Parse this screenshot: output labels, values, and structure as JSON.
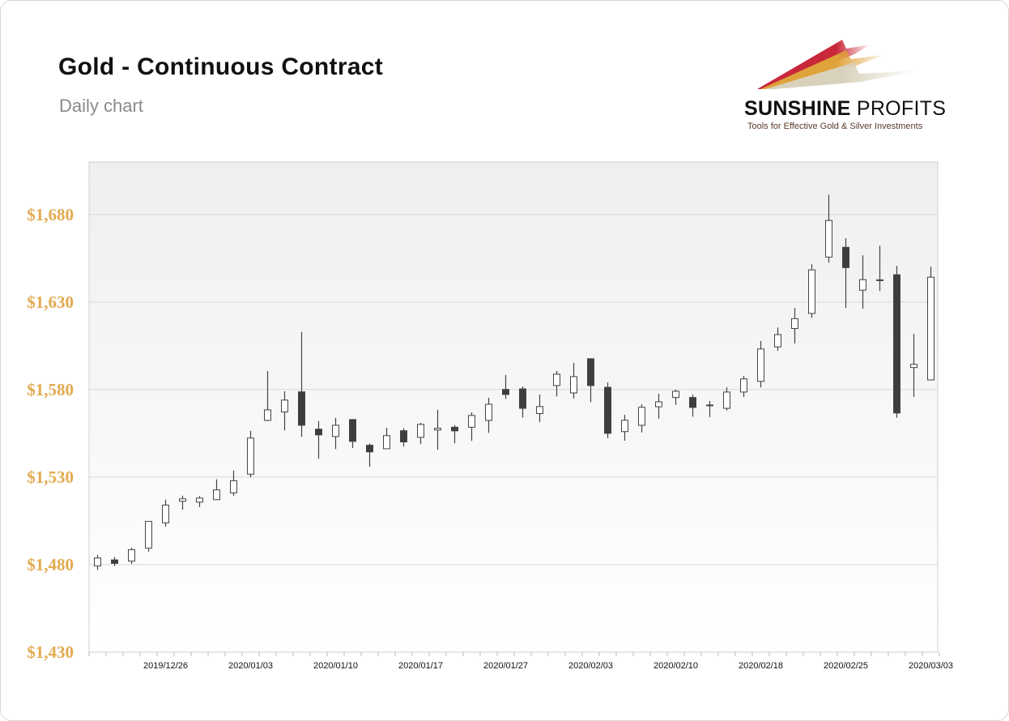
{
  "header": {
    "title": "Gold - Continuous Contract",
    "subtitle": "Daily chart"
  },
  "logo": {
    "name_bold": "SUNSHINE",
    "name_light": "PROFITS",
    "tagline": "Tools for Effective Gold & Silver Investments",
    "colors": [
      "#c8283a",
      "#e0a23a",
      "#d8d2bd"
    ]
  },
  "colors": {
    "up_fill": "#ffffff",
    "down_fill": "#3d3d3d",
    "wick": "#444444",
    "ytick": "#e3aa4f",
    "grid": "#d8d8d8"
  },
  "chart_data": {
    "type": "candlestick",
    "title": "Gold - Continuous Contract",
    "subtitle": "Daily chart",
    "xlabel": "",
    "ylabel": "",
    "ylim": [
      1430,
      1710
    ],
    "y_ticks": [
      1430,
      1480,
      1530,
      1580,
      1630,
      1680
    ],
    "y_tick_labels": [
      "$1,430",
      "$1,480",
      "$1,530",
      "$1,580",
      "$1,630",
      "$1,680"
    ],
    "grid": true,
    "x_tick_labels": [
      "2019/12/26",
      "2020/01/03",
      "2020/01/10",
      "2020/01/17",
      "2020/01/27",
      "2020/02/03",
      "2020/02/10",
      "2020/02/18",
      "2020/02/25",
      "2020/03/03"
    ],
    "dates": [
      "2019/12/19",
      "2019/12/20",
      "2019/12/23",
      "2019/12/24",
      "2019/12/26",
      "2019/12/27",
      "2019/12/30",
      "2019/12/31",
      "2020/01/02",
      "2020/01/03",
      "2020/01/06",
      "2020/01/07",
      "2020/01/08",
      "2020/01/09",
      "2020/01/10",
      "2020/01/13",
      "2020/01/14",
      "2020/01/15",
      "2020/01/16",
      "2020/01/17",
      "2020/01/21",
      "2020/01/22",
      "2020/01/23",
      "2020/01/24",
      "2020/01/27",
      "2020/01/28",
      "2020/01/29",
      "2020/01/30",
      "2020/01/31",
      "2020/02/03",
      "2020/02/04",
      "2020/02/05",
      "2020/02/06",
      "2020/02/07",
      "2020/02/10",
      "2020/02/11",
      "2020/02/12",
      "2020/02/13",
      "2020/02/14",
      "2020/02/18",
      "2020/02/19",
      "2020/02/20",
      "2020/02/21",
      "2020/02/24",
      "2020/02/25",
      "2020/02/26",
      "2020/02/27",
      "2020/02/28",
      "2020/03/02",
      "2020/03/03"
    ],
    "ohlc": [
      [
        1479.2,
        1485.5,
        1477.0,
        1483.8
      ],
      [
        1482.7,
        1484.3,
        1479.2,
        1480.7
      ],
      [
        1482.0,
        1489.7,
        1480.4,
        1488.5
      ],
      [
        1489.4,
        1504.7,
        1487.4,
        1504.7
      ],
      [
        1503.9,
        1517.1,
        1501.7,
        1514.0
      ],
      [
        1516.2,
        1519.4,
        1511.4,
        1517.6
      ],
      [
        1515.7,
        1519.2,
        1512.9,
        1518.0
      ],
      [
        1517.1,
        1528.7,
        1517.1,
        1522.7
      ],
      [
        1521.0,
        1533.7,
        1519.2,
        1527.9
      ],
      [
        1531.7,
        1556.4,
        1529.9,
        1552.3
      ],
      [
        1562.4,
        1590.6,
        1561.9,
        1568.4
      ],
      [
        1567.2,
        1579.0,
        1556.7,
        1574.0
      ],
      [
        1578.7,
        1612.9,
        1553.0,
        1559.6
      ],
      [
        1557.4,
        1562.0,
        1540.5,
        1554.1
      ],
      [
        1553.2,
        1563.8,
        1546.0,
        1559.6
      ],
      [
        1562.9,
        1562.9,
        1546.6,
        1550.4
      ],
      [
        1548.2,
        1549.2,
        1535.9,
        1544.4
      ],
      [
        1546.2,
        1558.2,
        1546.2,
        1553.7
      ],
      [
        1556.5,
        1557.9,
        1547.4,
        1550.1
      ],
      [
        1552.7,
        1561.0,
        1548.8,
        1560.1
      ],
      [
        1556.9,
        1568.4,
        1545.6,
        1557.9
      ],
      [
        1558.5,
        1559.6,
        1549.3,
        1556.4
      ],
      [
        1558.5,
        1567.0,
        1550.7,
        1565.2
      ],
      [
        1562.4,
        1575.3,
        1555.3,
        1571.6
      ],
      [
        1580.1,
        1588.3,
        1574.7,
        1577.2
      ],
      [
        1580.4,
        1581.8,
        1564.0,
        1569.3
      ],
      [
        1566.3,
        1577.2,
        1561.4,
        1570.3
      ],
      [
        1582.3,
        1590.6,
        1576.1,
        1588.8
      ],
      [
        1578.1,
        1595.2,
        1574.9,
        1587.4
      ],
      [
        1597.6,
        1598.0,
        1572.8,
        1582.3
      ],
      [
        1581.3,
        1584.1,
        1552.2,
        1555.0
      ],
      [
        1556.0,
        1565.6,
        1550.8,
        1562.5
      ],
      [
        1559.6,
        1571.6,
        1555.5,
        1569.9
      ],
      [
        1570.2,
        1577.6,
        1563.4,
        1573.0
      ],
      [
        1575.5,
        1580.0,
        1571.2,
        1579.0
      ],
      [
        1575.5,
        1577.2,
        1564.5,
        1569.8
      ],
      [
        1571.0,
        1573.5,
        1564.3,
        1571.2
      ],
      [
        1569.3,
        1581.3,
        1568.0,
        1578.6
      ],
      [
        1578.6,
        1587.8,
        1575.8,
        1586.1
      ],
      [
        1584.7,
        1607.8,
        1581.2,
        1603.2
      ],
      [
        1604.4,
        1615.5,
        1602.1,
        1611.4
      ],
      [
        1614.9,
        1626.6,
        1606.3,
        1620.5
      ],
      [
        1623.5,
        1651.6,
        1621.0,
        1648.4
      ],
      [
        1655.7,
        1691.3,
        1652.5,
        1676.6
      ],
      [
        1661.3,
        1666.4,
        1626.6,
        1649.7
      ],
      [
        1636.8,
        1656.7,
        1626.2,
        1642.8
      ],
      [
        1642.6,
        1662.2,
        1636.3,
        1642.7
      ],
      [
        1645.6,
        1650.7,
        1563.9,
        1566.6
      ],
      [
        1592.6,
        1611.8,
        1575.8,
        1594.4
      ],
      [
        1585.5,
        1650.2,
        1585.5,
        1644.2
      ]
    ]
  }
}
